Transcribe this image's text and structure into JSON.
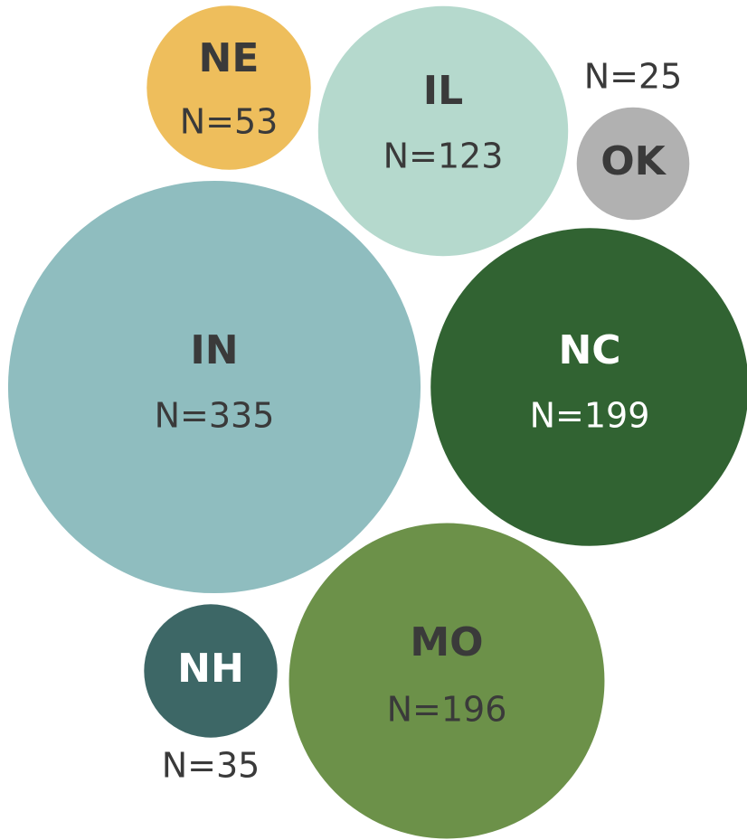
{
  "chart_data": {
    "type": "bubble",
    "categories": [
      "NE",
      "IL",
      "OK",
      "IN",
      "NC",
      "MO",
      "NH"
    ],
    "values": [
      53,
      123,
      25,
      335,
      199,
      196,
      35
    ],
    "value_labels": [
      "N=53",
      "N=123",
      "N=25",
      "N=335",
      "N=199",
      "N=196",
      "N=35"
    ],
    "colors": [
      "#eebe5c",
      "#b5d9cd",
      "#b1b1b1",
      "#8fbdbf",
      "#316332",
      "#6c9149",
      "#3d6766"
    ]
  }
}
